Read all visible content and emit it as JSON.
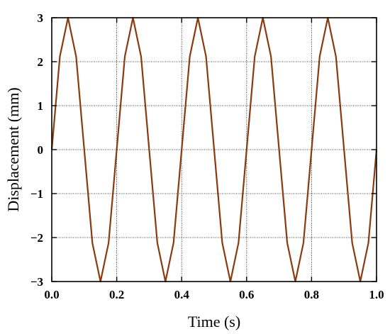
{
  "chart_data": {
    "type": "line",
    "xlabel": "Time (s)",
    "ylabel": "Displacement (mm)",
    "xlim": [
      0,
      1.0
    ],
    "ylim": [
      -3,
      3
    ],
    "xticks": [
      0.0,
      0.2,
      0.4,
      0.6,
      0.8,
      1.0
    ],
    "xtick_labels": [
      "0.0",
      "0.2",
      "0.4",
      "0.6",
      "0.8",
      "1.0"
    ],
    "yticks": [
      -3,
      -2,
      -1,
      0,
      1,
      2,
      3
    ],
    "ytick_labels": [
      "−3",
      "−2",
      "−1",
      "0",
      "1",
      "2",
      "3"
    ],
    "grid": true,
    "series": [
      {
        "amplitude": 3,
        "frequency": 5,
        "color": "#8b3a0f",
        "x": [
          0.0,
          0.025,
          0.05,
          0.075,
          0.1,
          0.125,
          0.15,
          0.175,
          0.2,
          0.225,
          0.25,
          0.275,
          0.3,
          0.325,
          0.35,
          0.375,
          0.4,
          0.425,
          0.45,
          0.475,
          0.5,
          0.525,
          0.55,
          0.575,
          0.6,
          0.625,
          0.65,
          0.675,
          0.7,
          0.725,
          0.75,
          0.775,
          0.8,
          0.825,
          0.85,
          0.875,
          0.9,
          0.925,
          0.95,
          0.975,
          1.0
        ],
        "y": [
          0,
          2.12,
          3,
          2.12,
          0,
          -2.12,
          -3,
          -2.12,
          0,
          2.12,
          3,
          2.12,
          0,
          -2.12,
          -3,
          -2.12,
          0,
          2.12,
          3,
          2.12,
          0,
          -2.12,
          -3,
          -2.12,
          0,
          2.12,
          3,
          2.12,
          0,
          -2.12,
          -3,
          -2.12,
          0,
          2.12,
          3,
          2.12,
          0,
          -2.12,
          -3,
          -2.12,
          0
        ]
      }
    ]
  }
}
